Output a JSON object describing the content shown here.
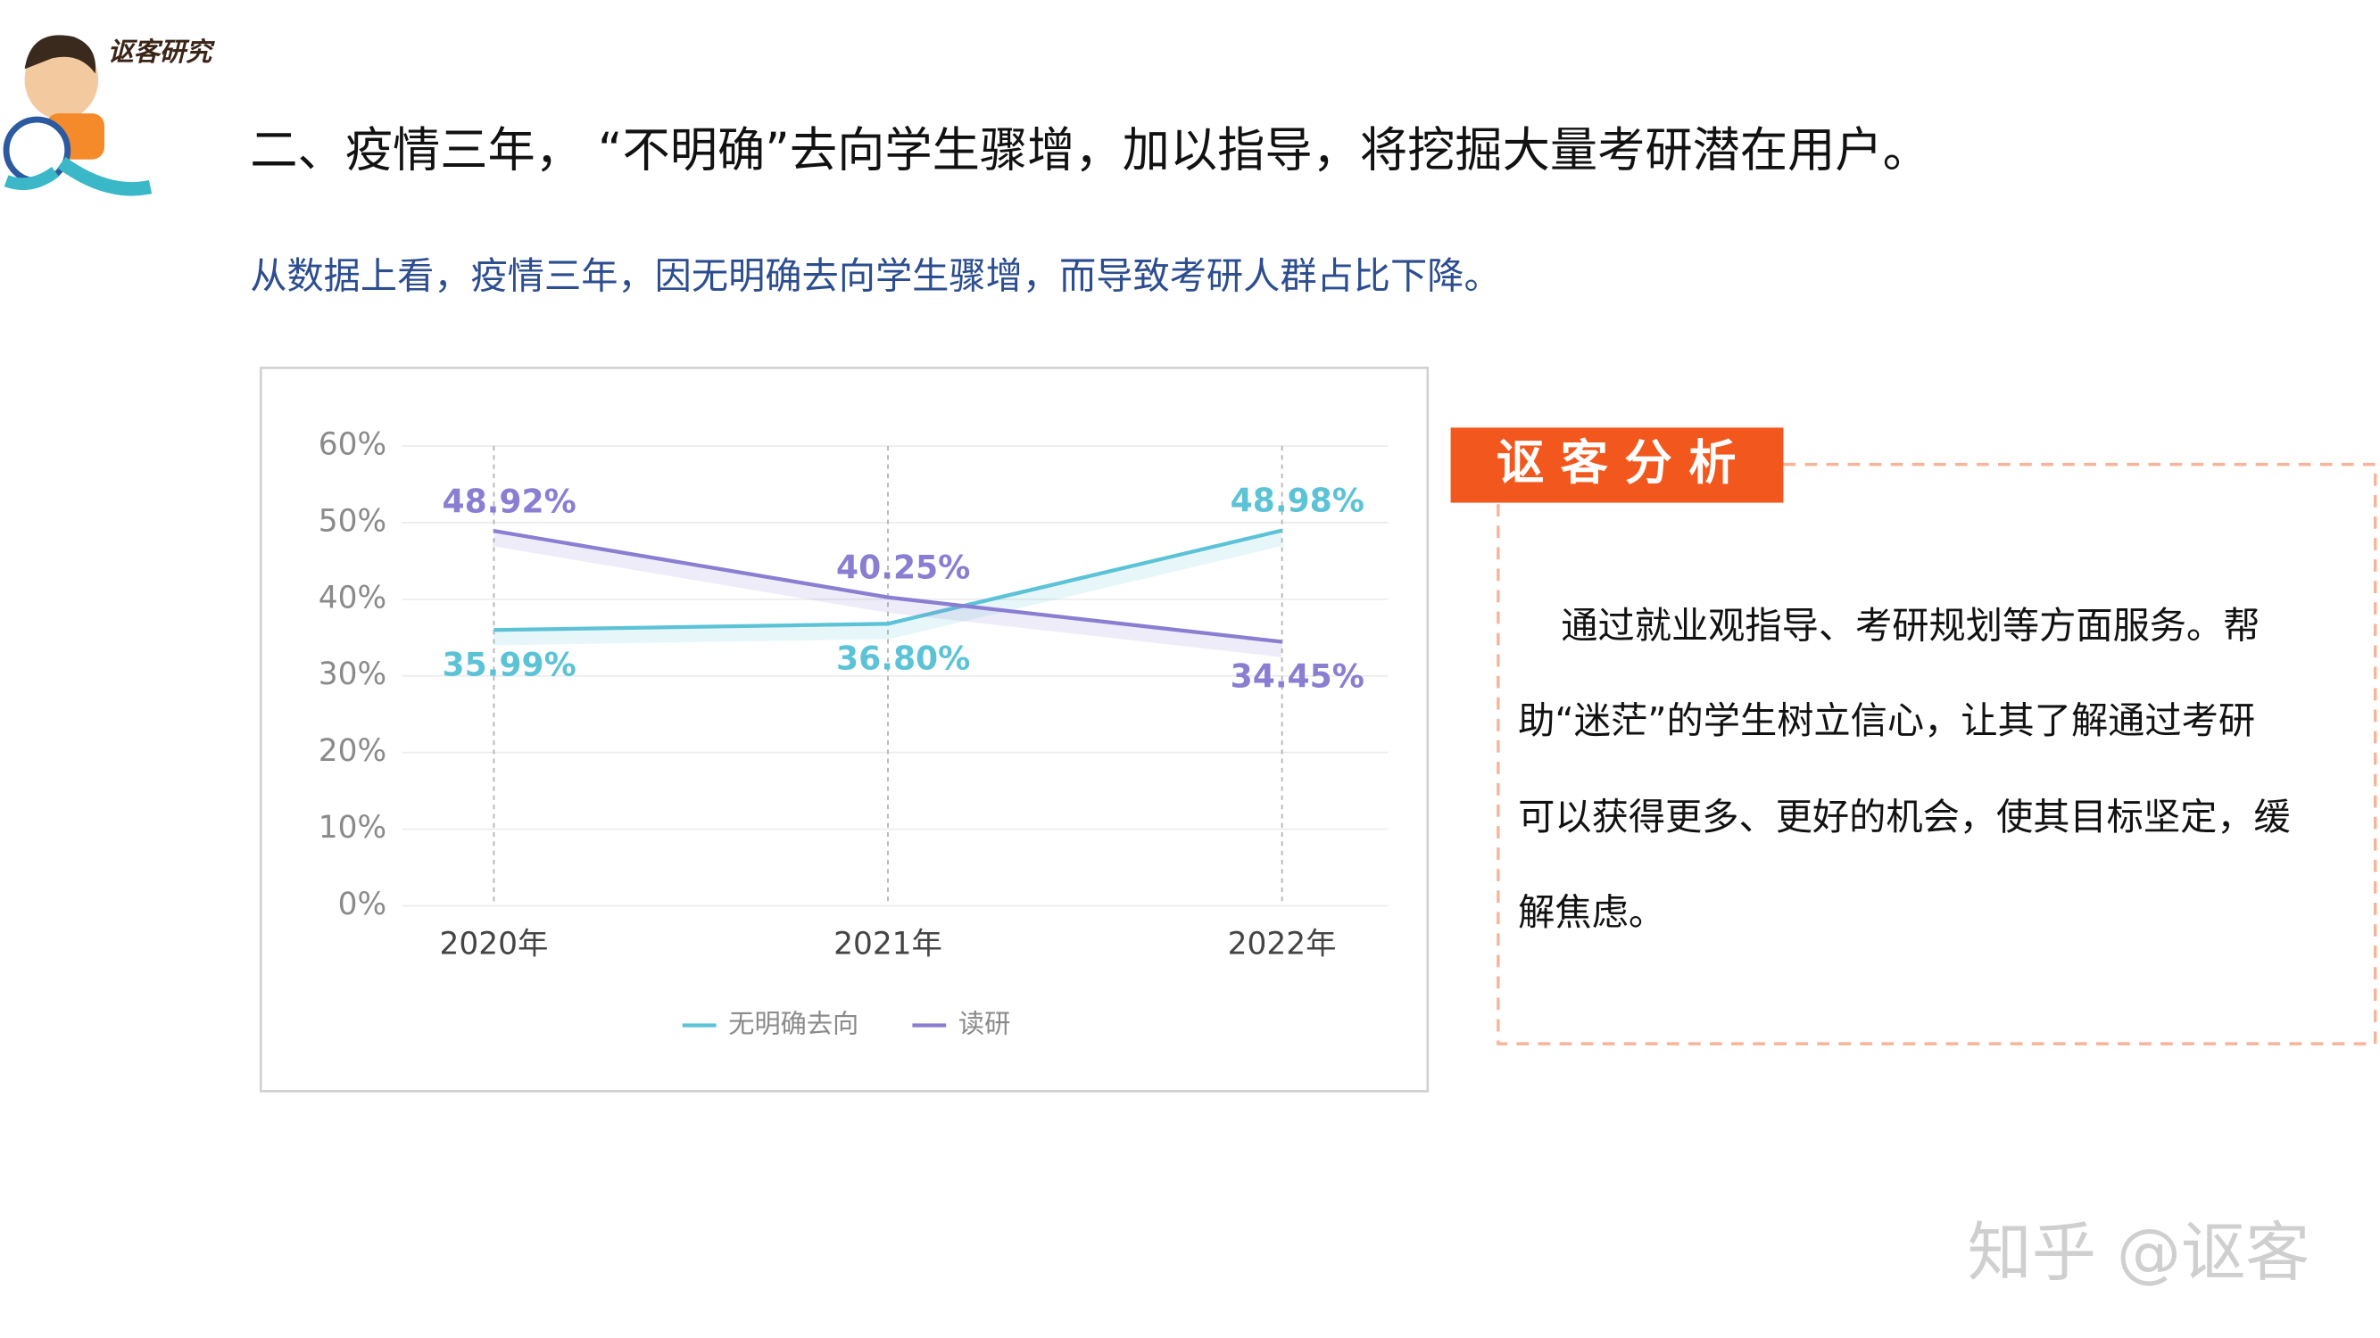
{
  "logo": {
    "text": "讴客研究"
  },
  "header": {
    "title": "二、疫情三年，  “不明确”去向学生骤增，加以指导，将挖掘大量考研潜在用户。",
    "subtitle": "从数据上看，疫情三年，因无明确去向学生骤增，而导致考研人群占比下降。"
  },
  "chart_data": {
    "type": "line",
    "categories": [
      "2020年",
      "2021年",
      "2022年"
    ],
    "series": [
      {
        "name": "无明确去向",
        "color": "#5cc3d6",
        "values": [
          35.99,
          36.8,
          48.98
        ],
        "value_labels": [
          "35.99%",
          "36.80%",
          "48.98%"
        ]
      },
      {
        "name": "读研",
        "color": "#8a7ed2",
        "values": [
          48.92,
          40.25,
          34.45
        ],
        "value_labels": [
          "48.92%",
          "40.25%",
          "34.45%"
        ]
      }
    ],
    "ylim": [
      0,
      60
    ],
    "yticks": [
      {
        "value": 0,
        "label": "0%"
      },
      {
        "value": 10,
        "label": "10%"
      },
      {
        "value": 20,
        "label": "20%"
      },
      {
        "value": 30,
        "label": "30%"
      },
      {
        "value": 40,
        "label": "40%"
      },
      {
        "value": 50,
        "label": "50%"
      },
      {
        "value": 60,
        "label": "60%"
      }
    ],
    "grid": true
  },
  "analysis": {
    "heading": "讴 客 分 析",
    "lines": [
      "通过就业观指导、考研规划等方面服务。帮",
      "助“迷茫”的学生树立信心，让其了解通过考研",
      "可以获得更多、更好的机会，使其目标坚定，缓",
      "解焦虑。"
    ]
  },
  "watermark": "知乎 @讴客"
}
